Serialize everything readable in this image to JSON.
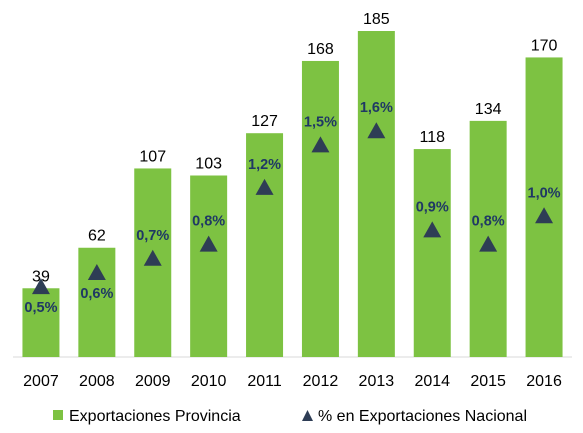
{
  "chart_data": {
    "type": "bar",
    "categories": [
      "2007",
      "2008",
      "2009",
      "2010",
      "2011",
      "2012",
      "2013",
      "2014",
      "2015",
      "2016"
    ],
    "series": [
      {
        "name": "Exportaciones Provincia",
        "kind": "bar",
        "values": [
          39,
          62,
          107,
          103,
          127,
          168,
          185,
          118,
          134,
          170
        ],
        "labels": [
          "39",
          "62",
          "107",
          "103",
          "127",
          "168",
          "185",
          "118",
          "134",
          "170"
        ],
        "color": "#7dc242"
      },
      {
        "name": "% en Exportaciones Nacional",
        "kind": "marker",
        "marker": "triangle",
        "values": [
          0.5,
          0.6,
          0.7,
          0.8,
          1.2,
          1.5,
          1.6,
          0.9,
          0.8,
          1.0
        ],
        "labels": [
          "0,5%",
          "0,6%",
          "0,7%",
          "0,8%",
          "1,2%",
          "1,5%",
          "1,6%",
          "0,9%",
          "0,8%",
          "1,0%"
        ],
        "color": "#2e3d55",
        "label_color": "#1f3864"
      }
    ],
    "ylim": [
      0,
      185
    ],
    "y2lim": [
      0,
      2.3
    ],
    "legend_position": "bottom"
  }
}
